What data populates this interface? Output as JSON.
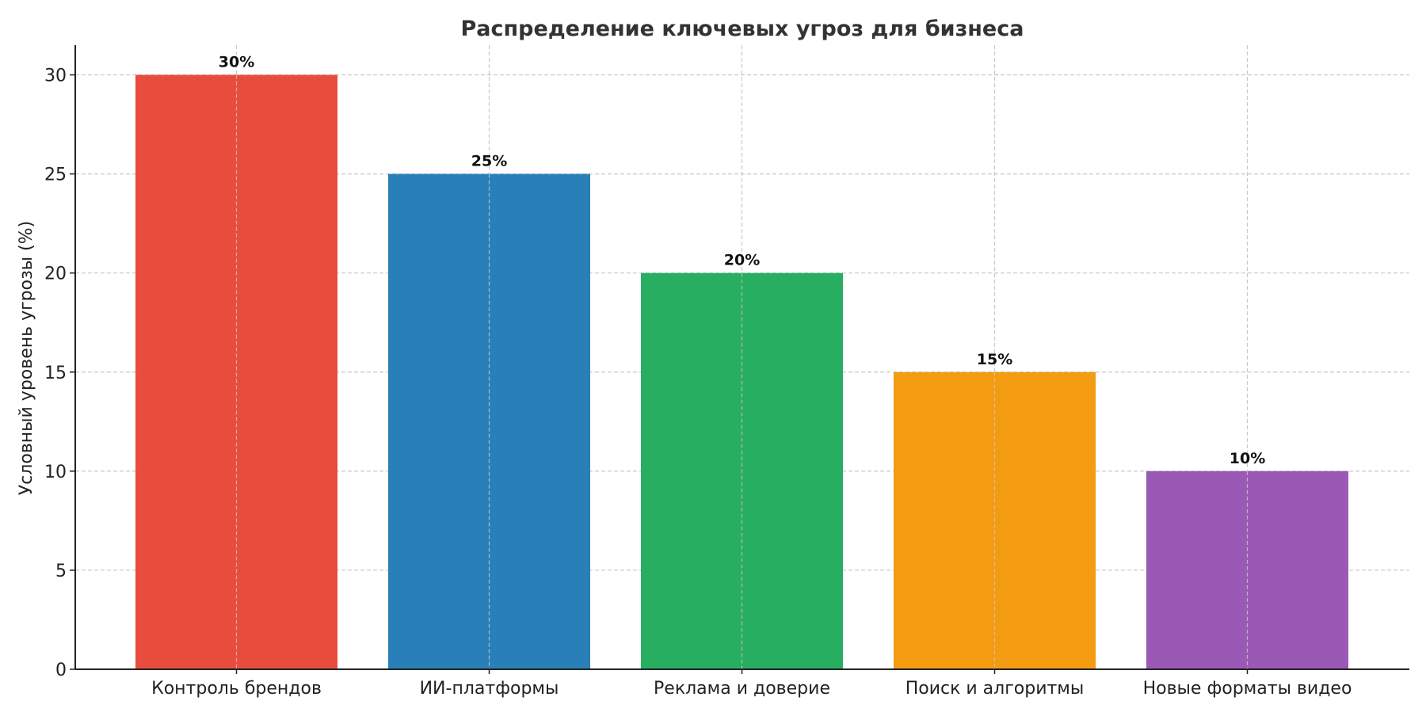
{
  "chart_data": {
    "type": "bar",
    "title": "Распределение ключевых угроз для бизнеса",
    "xlabel": "",
    "ylabel": "Условный уровень угрозы (%)",
    "categories": [
      "Контроль брендов",
      "ИИ-платформы",
      "Реклама и доверие",
      "Поиск и алгоритмы",
      "Новые форматы видео"
    ],
    "values": [
      30,
      25,
      20,
      15,
      10
    ],
    "data_labels": [
      "30%",
      "25%",
      "20%",
      "15%",
      "10%"
    ],
    "colors": [
      "#e74c3c",
      "#2980b9",
      "#27ae60",
      "#f39c12",
      "#9b59b6"
    ],
    "ylim": [
      0,
      31.5
    ],
    "yticks": [
      0,
      5,
      10,
      15,
      20,
      25,
      30
    ],
    "grid": true,
    "grid_style": "dashed"
  }
}
